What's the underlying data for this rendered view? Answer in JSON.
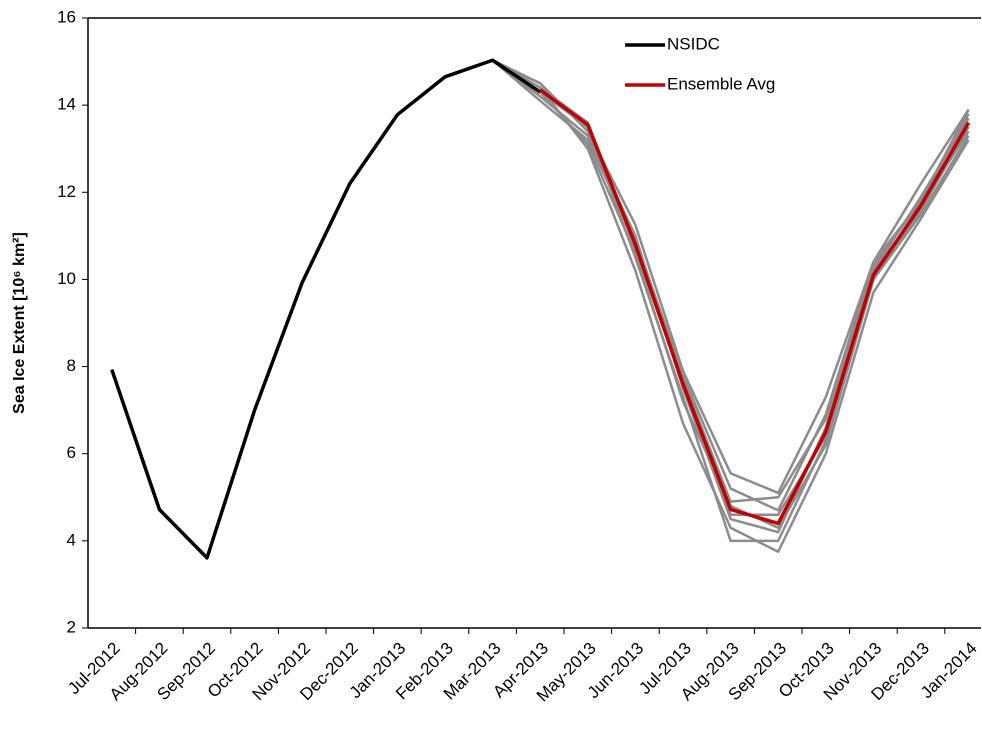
{
  "chart_data": {
    "type": "line",
    "y_label": "Sea Ice Extent [10⁶ km²]",
    "categories": [
      "Jul-2012",
      "Aug-2012",
      "Sep-2012",
      "Oct-2012",
      "Nov-2012",
      "Dec-2012",
      "Jan-2013",
      "Feb-2013",
      "Mar-2013",
      "Apr-2013",
      "May-2013",
      "Jun-2013",
      "Jul-2013",
      "Aug-2013",
      "Sep-2013",
      "Oct-2013",
      "Nov-2013",
      "Dec-2013",
      "Jan-2014"
    ],
    "ylim": [
      2,
      16
    ],
    "yticks": [
      2,
      4,
      6,
      8,
      10,
      12,
      14,
      16
    ],
    "grid": false,
    "legend": "upper right",
    "series": [
      {
        "name": "NSIDC",
        "color": "#000000",
        "values": [
          7.93,
          4.72,
          3.61,
          7.0,
          9.93,
          12.2,
          13.78,
          14.65,
          15.03,
          14.3,
          null,
          null,
          null,
          null,
          null,
          null,
          null,
          null,
          null
        ]
      },
      {
        "color": "#8c8c8c",
        "values": [
          null,
          null,
          null,
          null,
          null,
          null,
          null,
          null,
          15.03,
          14.5,
          13.4,
          11.25,
          7.9,
          5.55,
          5.1,
          7.3,
          10.4,
          12.2,
          13.9
        ]
      },
      {
        "color": "#8c8c8c",
        "values": [
          null,
          null,
          null,
          null,
          null,
          null,
          null,
          null,
          15.03,
          14.1,
          13.2,
          10.9,
          7.7,
          4.9,
          5.0,
          6.8,
          10.3,
          11.8,
          13.8
        ]
      },
      {
        "color": "#8c8c8c",
        "values": [
          null,
          null,
          null,
          null,
          null,
          null,
          null,
          null,
          15.03,
          14.3,
          13.5,
          10.5,
          7.3,
          4.0,
          4.0,
          6.3,
          10.0,
          11.6,
          13.5
        ]
      },
      {
        "color": "#8c8c8c",
        "values": [
          null,
          null,
          null,
          null,
          null,
          null,
          null,
          null,
          15.03,
          14.4,
          13.0,
          10.2,
          6.7,
          4.3,
          3.75,
          6.0,
          9.7,
          11.4,
          13.2
        ]
      },
      {
        "color": "#8c8c8c",
        "values": [
          null,
          null,
          null,
          null,
          null,
          null,
          null,
          null,
          15.03,
          14.2,
          13.3,
          11.0,
          7.5,
          4.5,
          4.2,
          6.6,
          10.2,
          11.9,
          13.7
        ]
      },
      {
        "color": "#8c8c8c",
        "values": [
          null,
          null,
          null,
          null,
          null,
          null,
          null,
          null,
          15.03,
          14.4,
          13.6,
          10.7,
          7.6,
          4.6,
          4.6,
          6.4,
          10.1,
          11.7,
          13.4
        ]
      },
      {
        "color": "#8c8c8c",
        "values": [
          null,
          null,
          null,
          null,
          null,
          null,
          null,
          null,
          15.03,
          14.3,
          13.1,
          10.6,
          7.2,
          4.8,
          4.3,
          6.2,
          10.0,
          11.5,
          13.3
        ]
      },
      {
        "color": "#8c8c8c",
        "values": [
          null,
          null,
          null,
          null,
          null,
          null,
          null,
          null,
          15.03,
          14.5,
          13.4,
          10.9,
          7.8,
          5.2,
          4.7,
          6.9,
          10.4,
          11.8,
          13.9
        ]
      },
      {
        "name": "Ensemble Avg",
        "color": "#c00000",
        "values": [
          null,
          null,
          null,
          null,
          null,
          null,
          null,
          null,
          null,
          14.35,
          13.55,
          10.8,
          7.6,
          4.72,
          4.4,
          6.5,
          10.1,
          11.7,
          13.6
        ]
      }
    ]
  }
}
